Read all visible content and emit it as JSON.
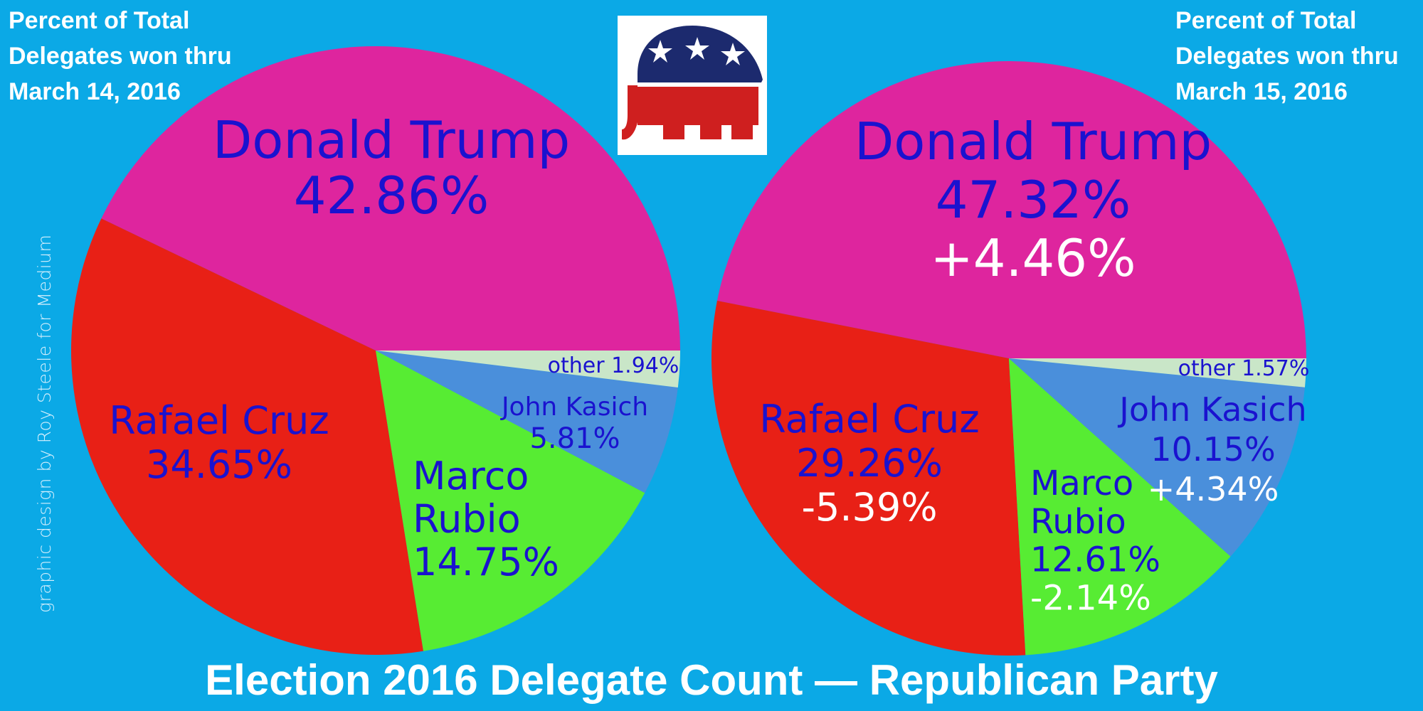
{
  "colors": {
    "background": "#0ba9e6",
    "trump": "#de259e",
    "cruz": "#e82016",
    "rubio": "#57ec33",
    "kasich": "#4a8fdb",
    "other": "#c9e6c8",
    "label_text": "#1a12cf",
    "change_text": "#ffffff"
  },
  "header_left": [
    "Percent of Total",
    "Delegates won  thru",
    "March 14, 2016"
  ],
  "header_right": [
    "Percent of Total",
    "Delegates won  thru",
    "March 15, 2016"
  ],
  "credit": "graphic design by Roy Steele for Medium",
  "footer_title": "Election 2016 Delegate Count — Republican Party",
  "logo": "republican-elephant",
  "chart_data": [
    {
      "type": "pie",
      "title": "Percent of Total Delegates won thru March 14, 2016",
      "slices": [
        {
          "key": "trump",
          "label": "Donald Trump",
          "value": 42.86,
          "value_text": "42.86%",
          "change_text": ""
        },
        {
          "key": "cruz",
          "label": "Rafael Cruz",
          "value": 34.65,
          "value_text": "34.65%",
          "change_text": ""
        },
        {
          "key": "rubio",
          "label": "Marco Rubio",
          "value": 14.75,
          "value_text": "14.75%",
          "change_text": ""
        },
        {
          "key": "kasich",
          "label": "John Kasich",
          "value": 5.81,
          "value_text": "5.81%",
          "change_text": ""
        },
        {
          "key": "other",
          "label": "other",
          "value": 1.94,
          "value_text": "1.94%",
          "change_text": ""
        }
      ]
    },
    {
      "type": "pie",
      "title": "Percent of Total Delegates won thru March 15, 2016",
      "slices": [
        {
          "key": "trump",
          "label": "Donald Trump",
          "value": 47.32,
          "value_text": "47.32%",
          "change_text": "+4.46%"
        },
        {
          "key": "cruz",
          "label": "Rafael Cruz",
          "value": 29.26,
          "value_text": "29.26%",
          "change_text": "-5.39%"
        },
        {
          "key": "rubio",
          "label": "Marco Rubio",
          "value": 12.61,
          "value_text": "12.61%",
          "change_text": "-2.14%"
        },
        {
          "key": "kasich",
          "label": "John Kasich",
          "value": 10.15,
          "value_text": "10.15%",
          "change_text": "+4.34%"
        },
        {
          "key": "other",
          "label": "other",
          "value": 1.57,
          "value_text": "1.57%",
          "change_text": ""
        }
      ]
    }
  ]
}
